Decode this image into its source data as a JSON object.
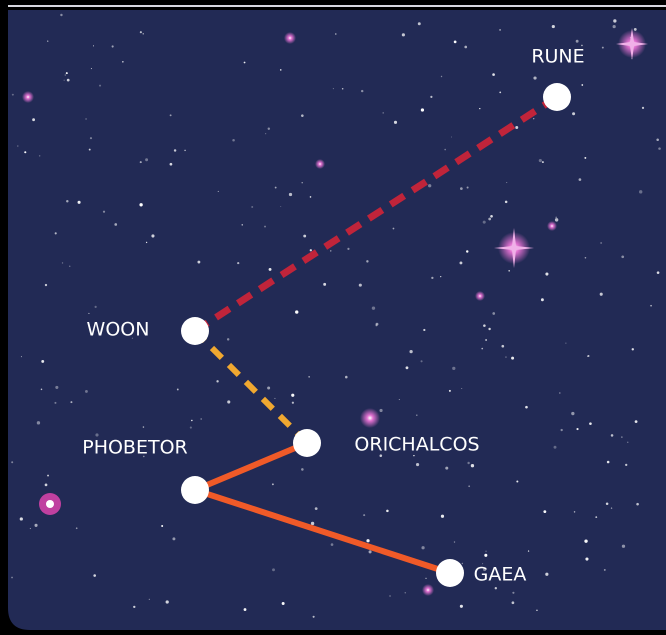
{
  "nodes": [
    {
      "label": "RUNE"
    },
    {
      "label": "WOON"
    },
    {
      "label": "ORICHALCOS"
    },
    {
      "label": "PHOBETOR"
    },
    {
      "label": "GAEA"
    }
  ]
}
